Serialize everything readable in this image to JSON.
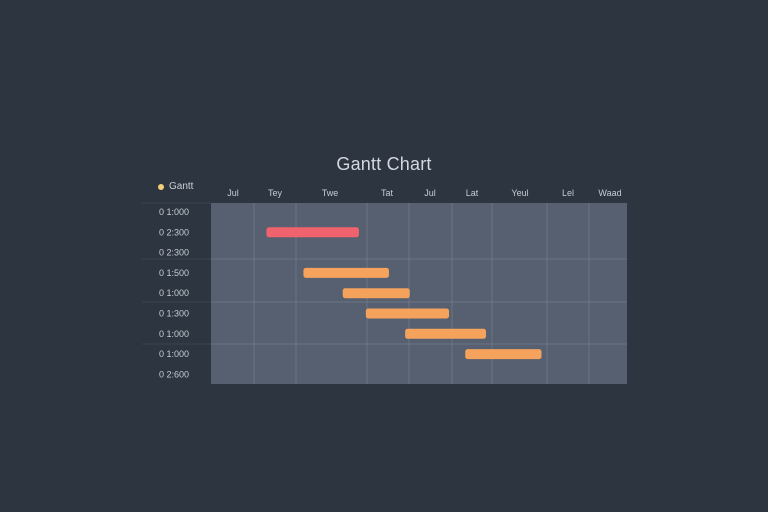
{
  "chart_data": {
    "type": "bar",
    "title": "Gantt Chart",
    "legend": {
      "label": "Gantt",
      "color": "#f2cf7a",
      "placement": "top-left"
    },
    "categories": [
      "Jul",
      "Tey",
      "Twe",
      "Tat",
      "Jul",
      "Lat",
      "Yeul",
      "Lel",
      "Waad"
    ],
    "rows": [
      "0 1:000",
      "0 2:300",
      "0 2:300",
      "0 1:500",
      "0 1:000",
      "0 1:300",
      "0 1:000",
      "0 1:000",
      "0 2:600"
    ],
    "xlim": [
      0,
      9
    ],
    "tasks": [
      {
        "row": 1,
        "start": 1.2,
        "end": 3.2,
        "color": "#f0626c"
      },
      {
        "row": 3,
        "start": 2.0,
        "end": 3.85,
        "color": "#f5a25d"
      },
      {
        "row": 4,
        "start": 2.85,
        "end": 4.3,
        "color": "#f5a25d"
      },
      {
        "row": 5,
        "start": 3.35,
        "end": 5.15,
        "color": "#f5a25d"
      },
      {
        "row": 6,
        "start": 4.2,
        "end": 5.95,
        "color": "#f5a25d"
      },
      {
        "row": 7,
        "start": 5.5,
        "end": 7.15,
        "color": "#f5a25d"
      }
    ],
    "grid": true,
    "plot_background": "#566070",
    "grid_color": "#6b7584"
  }
}
